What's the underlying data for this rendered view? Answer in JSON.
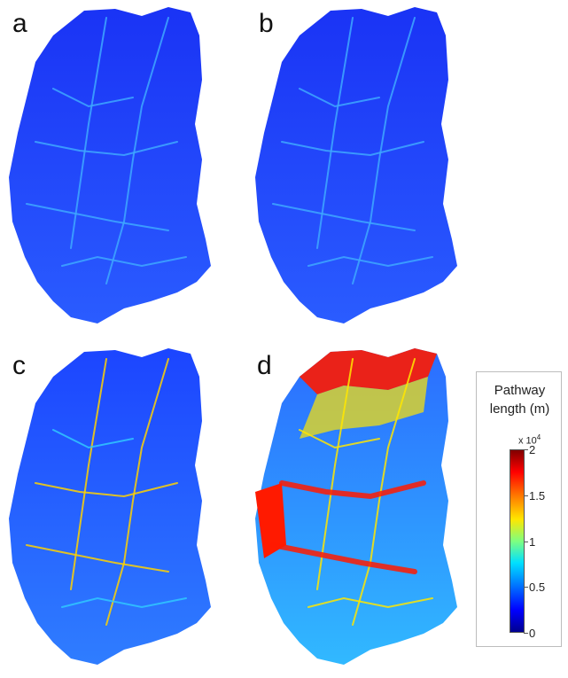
{
  "panels": [
    {
      "label": "a",
      "colors": [
        "#1a33f5",
        "#2a5cff",
        "#3ea8ff",
        "#7fe6ff"
      ]
    },
    {
      "label": "b",
      "colors": [
        "#1a33f5",
        "#2a5cff",
        "#3ea8ff",
        "#7fe6ff"
      ]
    },
    {
      "label": "c",
      "colors": [
        "#1c45ff",
        "#2f7dff",
        "#30c8ff",
        "#ffd200"
      ]
    },
    {
      "label": "d",
      "colors": [
        "#2b6cff",
        "#31b9ff",
        "#ffe600",
        "#ff1a00"
      ]
    }
  ],
  "legend": {
    "title_line1": "Pathway",
    "title_line2": "length (m)",
    "multiplier": "x 10",
    "multiplier_exp": "4",
    "ticks": [
      "0",
      "0.5",
      "1",
      "1.5",
      "2"
    ],
    "min": 0,
    "max": 2
  }
}
